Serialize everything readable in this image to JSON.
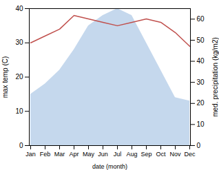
{
  "chart_data": {
    "type": "line",
    "xlabel": "date (month)",
    "ylabel": "max temp (C)",
    "y2label": "med. precipitation (kg/m2)",
    "categories": [
      "Jan",
      "Feb",
      "Mar",
      "Apr",
      "May",
      "Jun",
      "Jul",
      "Aug",
      "Sep",
      "Oct",
      "Nov",
      "Dec"
    ],
    "series": [
      {
        "type": "area",
        "color": "#c5d8ed",
        "values": [
          15,
          18,
          22,
          28,
          35,
          38,
          40,
          38,
          30,
          22,
          14,
          13
        ]
      },
      {
        "type": "line",
        "color": "#c0504d",
        "values": [
          30,
          32,
          34,
          38,
          37,
          36,
          35,
          36,
          37,
          36,
          33,
          29
        ]
      }
    ],
    "ylim": [
      0,
      40
    ],
    "yticks": [
      0,
      10,
      20,
      30,
      40
    ],
    "y2lim": [
      0,
      65
    ],
    "y2ticks": [
      0,
      10,
      20,
      30,
      40,
      50,
      60
    ],
    "grid": false
  }
}
